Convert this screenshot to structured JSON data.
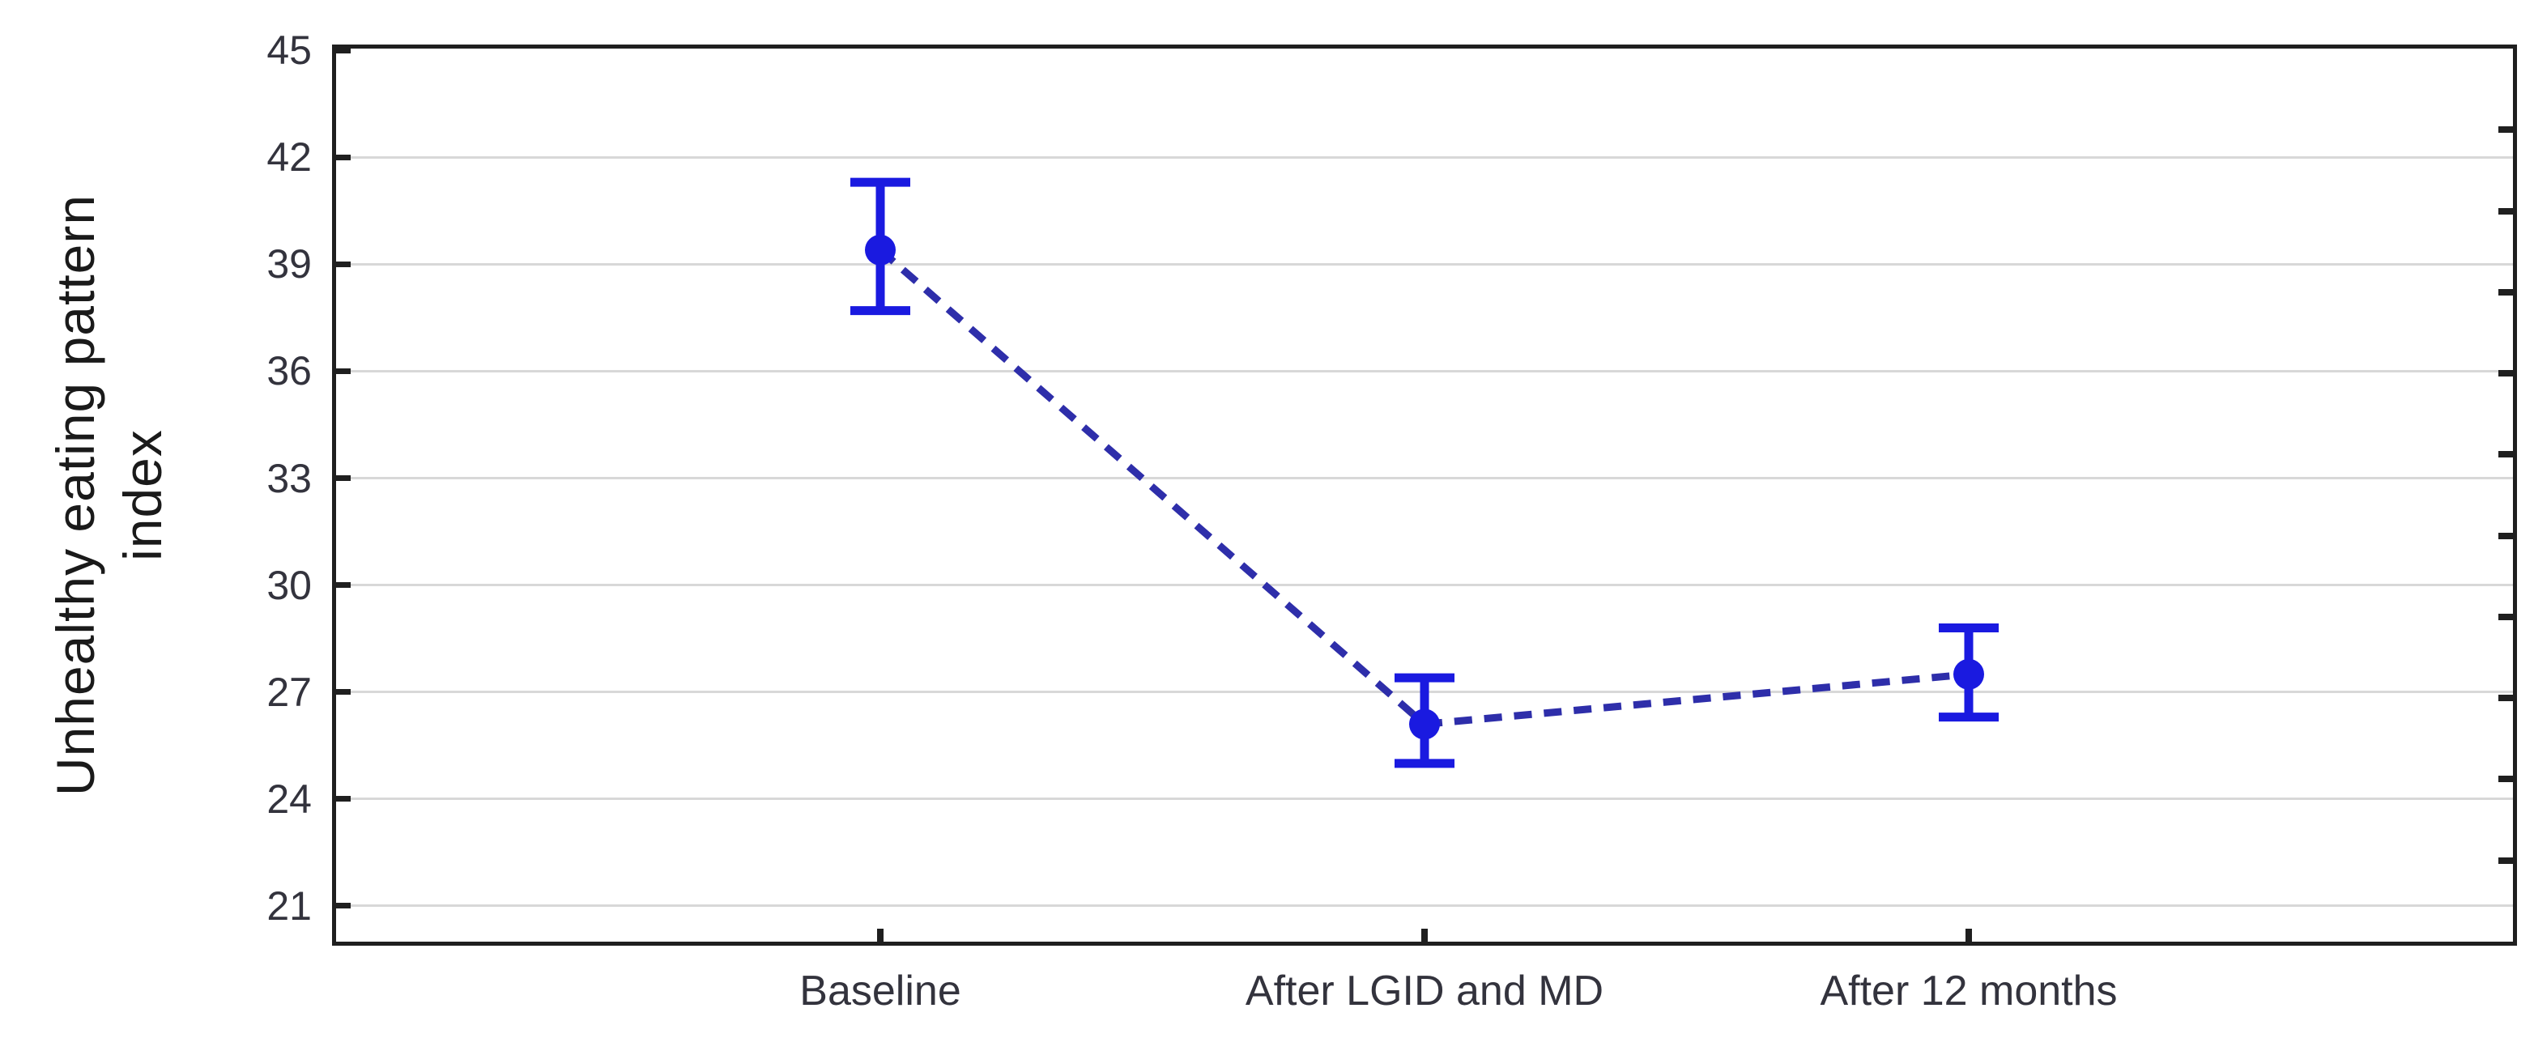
{
  "chart_data": {
    "type": "line",
    "ylabel": "Unhealthy eating pattern index",
    "ylabel_lines": [
      "Unhealthy eating pattern",
      "index"
    ],
    "categories": [
      "Baseline",
      "After LGID and MD",
      "After 12 months"
    ],
    "series": [
      {
        "name": "Unhealthy eating pattern index (mean with error bars)",
        "values": [
          39.4,
          26.1,
          27.5
        ],
        "err_low": [
          37.7,
          25.0,
          26.3
        ],
        "err_high": [
          41.3,
          27.4,
          28.8
        ]
      }
    ],
    "yticks": [
      45,
      42,
      39,
      36,
      33,
      30,
      27,
      24,
      21
    ],
    "ylim": [
      20.0,
      45.05
    ],
    "grid": true,
    "legend_position": "none",
    "line_style": "dashed",
    "marker": "circle",
    "right_axis_minor_tick_count": 10,
    "colors": {
      "marker": "#1a1ae0",
      "line": "#2e2eaa",
      "errorbar": "#1a1ae0",
      "grid": "#d8d8d8",
      "frame": "#1f1f1f",
      "tick_label": "#33333d",
      "axis_title": "#1a1a1a"
    }
  }
}
